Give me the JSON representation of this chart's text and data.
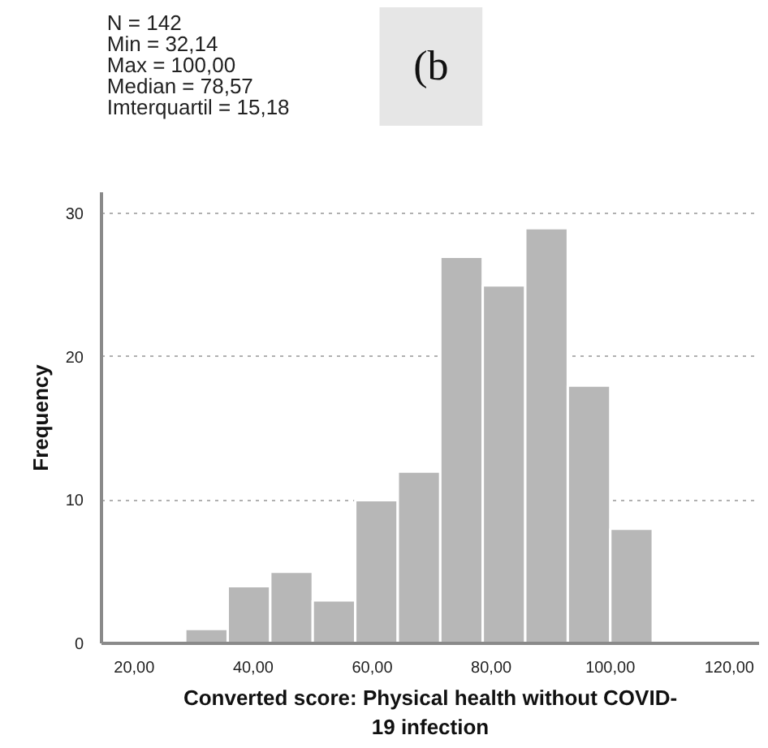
{
  "chart_data": {
    "type": "histogram",
    "title": "(b",
    "annotations": [
      "N = 142",
      "Min = 32,14",
      "Max = 100,00",
      "Median = 78,57",
      "Imterquartil = 15,18"
    ],
    "xlabel": "Converted score: Physical health without COVID-\n19 infection",
    "ylabel": "Frequency",
    "bins": [
      28.57,
      35.71,
      42.86,
      50,
      57.14,
      64.29,
      71.43,
      78.57,
      85.71,
      92.86,
      100,
      107.14
    ],
    "values": [
      1,
      4,
      5,
      3,
      10,
      12,
      27,
      25,
      29,
      18,
      8
    ],
    "color": "#b7b7b7",
    "xlim": [
      14.5,
      125
    ],
    "ylim": [
      0,
      31.5
    ],
    "xticks": [
      {
        "value": 20,
        "label": "20,00"
      },
      {
        "value": 40,
        "label": "40,00"
      },
      {
        "value": 60,
        "label": "60,00"
      },
      {
        "value": 80,
        "label": "80,00"
      },
      {
        "value": 100,
        "label": "100,00"
      },
      {
        "value": 120,
        "label": "120,00"
      }
    ],
    "yticks": [
      0,
      10,
      20,
      30
    ],
    "grid": "y"
  }
}
